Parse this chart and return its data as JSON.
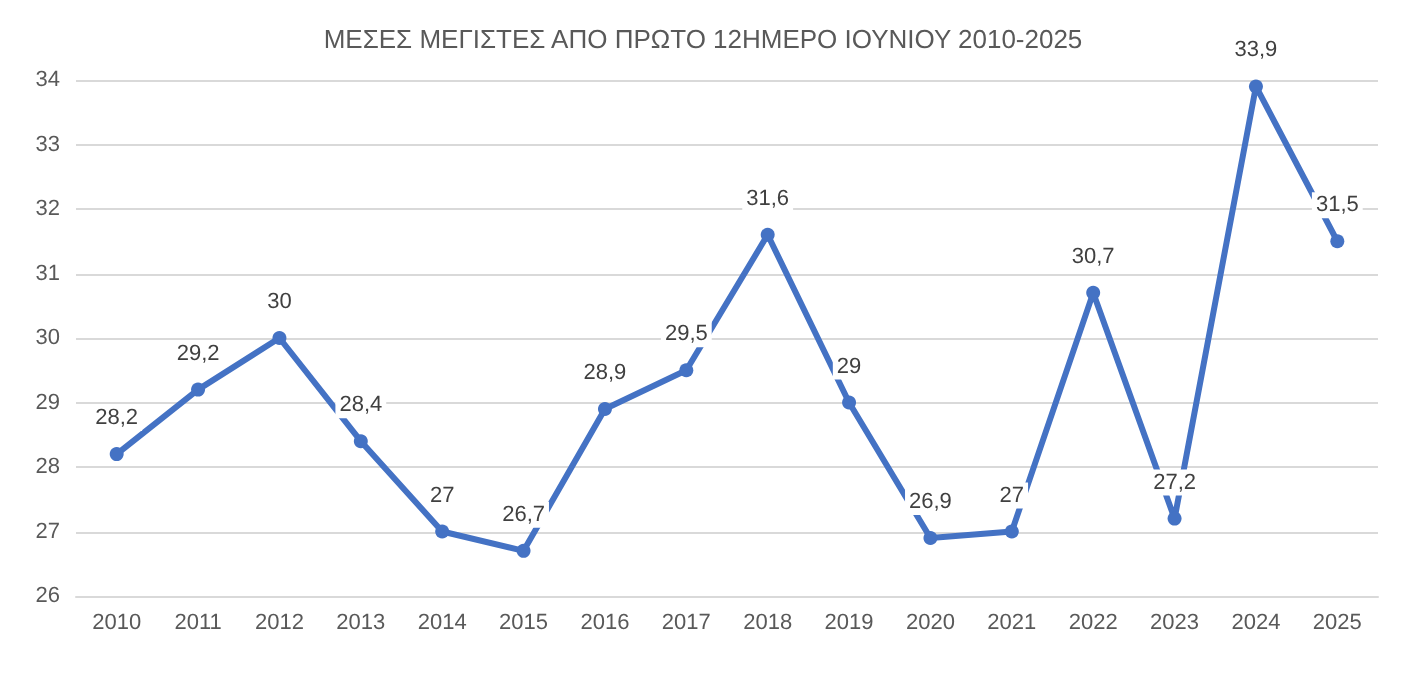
{
  "chart_data": {
    "type": "line",
    "title": "ΜΕΣΕΣ ΜΕΓΙΣΤΕΣ ΑΠΟ ΠΡΩΤΟ 12ΗΜΕΡΟ ΙΟΥΝΙΟΥ 2010-2025",
    "categories": [
      "2010",
      "2011",
      "2012",
      "2013",
      "2014",
      "2015",
      "2016",
      "2017",
      "2018",
      "2019",
      "2020",
      "2021",
      "2022",
      "2023",
      "2024",
      "2025"
    ],
    "values": [
      28.2,
      29.2,
      30,
      28.4,
      27,
      26.7,
      28.9,
      29.5,
      31.6,
      29,
      26.9,
      27,
      30.7,
      27.2,
      33.9,
      31.5
    ],
    "value_labels": [
      "28,2",
      "29,2",
      "30",
      "28,4",
      "27",
      "26,7",
      "28,9",
      "29,5",
      "31,6",
      "29",
      "26,9",
      "27",
      "30,7",
      "27,2",
      "33,9",
      "31,5"
    ],
    "color": "#4472c4",
    "ylim": [
      26,
      34
    ],
    "yticks": [
      26,
      27,
      28,
      29,
      30,
      31,
      32,
      33,
      34
    ],
    "grid": "y",
    "marker": "circle",
    "line_style": "solid"
  }
}
